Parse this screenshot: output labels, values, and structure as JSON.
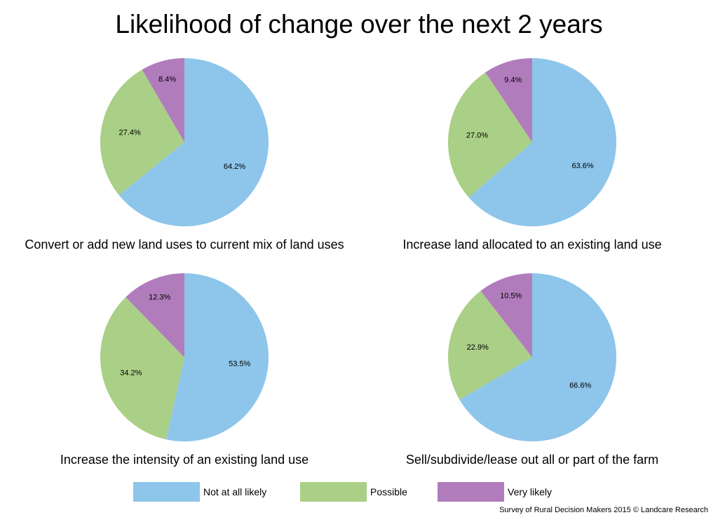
{
  "title": "Likelihood of change over the next 2 years",
  "footer": "Survey of Rural Decision Makers 2015 © Landcare Research",
  "colors": {
    "not_at_all_likely": "#8ec5ea",
    "possible": "#aacf86",
    "very_likely": "#b17cbc"
  },
  "legend": [
    {
      "label": "Not at all likely",
      "color_key": "not_at_all_likely"
    },
    {
      "label": "Possible",
      "color_key": "possible"
    },
    {
      "label": "Very likely",
      "color_key": "very_likely"
    }
  ],
  "chart_data": [
    {
      "type": "pie",
      "caption": "Convert or add new land uses to current mix of land uses",
      "slices": [
        {
          "label": "Not at all likely",
          "value": 64.2,
          "display": "64.2%"
        },
        {
          "label": "Possible",
          "value": 27.4,
          "display": "27.4%"
        },
        {
          "label": "Very likely",
          "value": 8.4,
          "display": "8.4%"
        }
      ]
    },
    {
      "type": "pie",
      "caption": "Increase land allocated to an existing land use",
      "slices": [
        {
          "label": "Not at all likely",
          "value": 63.6,
          "display": "63.6%"
        },
        {
          "label": "Possible",
          "value": 27.0,
          "display": "27.0%"
        },
        {
          "label": "Very likely",
          "value": 9.4,
          "display": "9.4%"
        }
      ]
    },
    {
      "type": "pie",
      "caption": "Increase the intensity of an existing land use",
      "slices": [
        {
          "label": "Not at all likely",
          "value": 53.5,
          "display": "53.5%"
        },
        {
          "label": "Possible",
          "value": 34.2,
          "display": "34.2%"
        },
        {
          "label": "Very likely",
          "value": 12.3,
          "display": "12.3%"
        }
      ]
    },
    {
      "type": "pie",
      "caption": "Sell/subdivide/lease out all or part of the farm",
      "slices": [
        {
          "label": "Not at all likely",
          "value": 66.6,
          "display": "66.6%"
        },
        {
          "label": "Possible",
          "value": 22.9,
          "display": "22.9%"
        },
        {
          "label": "Very likely",
          "value": 10.5,
          "display": "10.5%"
        }
      ]
    }
  ]
}
